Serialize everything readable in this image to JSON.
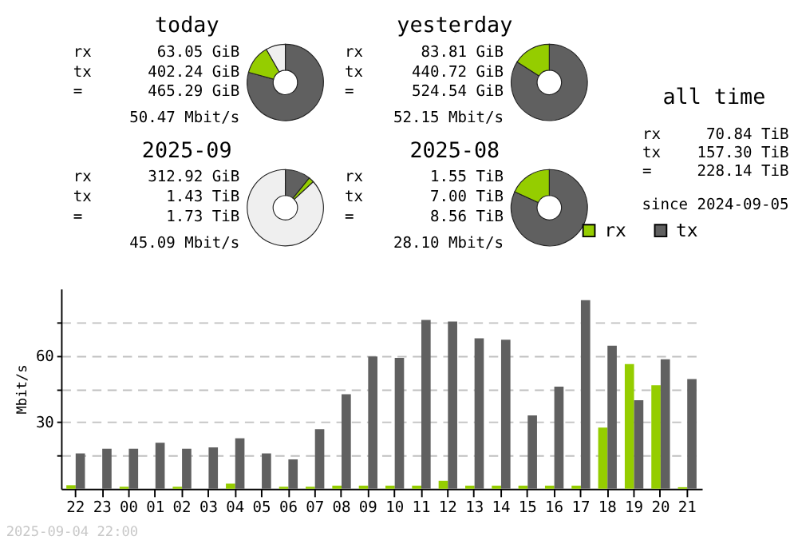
{
  "chart_data": [
    {
      "type": "donut",
      "title": "today",
      "categories": [
        null,
        null,
        null
      ],
      "values": [
        79.3,
        12.4,
        8.3
      ],
      "colors": [
        "#606060",
        "#95cd00",
        "#efefef"
      ],
      "annotations": [
        "rx",
        "63.05 GiB",
        "tx",
        "402.24 GiB",
        "=",
        "465.29 GiB",
        "50.47 Mbit/s"
      ]
    },
    {
      "type": "donut",
      "title": "yesterday",
      "categories": [
        null,
        null
      ],
      "values": [
        84,
        16
      ],
      "colors": [
        "#606060",
        "#95cd00"
      ],
      "annotations": [
        "rx",
        "83.81 GiB",
        "tx",
        "440.72 GiB",
        "=",
        "524.54 GiB",
        "52.15 Mbit/s"
      ]
    },
    {
      "type": "other",
      "title": "all time",
      "annotations": [
        "rx",
        "70.84 TiB",
        "tx",
        "157.30 TiB",
        "=",
        "228.14 TiB",
        "since 2024-09-05"
      ]
    },
    {
      "type": "donut",
      "title": "2025-09",
      "categories": [
        null,
        null,
        null
      ],
      "values": [
        10.8,
        2.3,
        86.9
      ],
      "colors": [
        "#606060",
        "#95cd00",
        "#efefef"
      ],
      "annotations": [
        "rx",
        "312.92 GiB",
        "tx",
        "1.43 TiB",
        "=",
        "1.73 TiB",
        "45.09 Mbit/s"
      ]
    },
    {
      "type": "donut",
      "title": "2025-08",
      "categories": [
        null,
        null
      ],
      "values": [
        81.9,
        18.1
      ],
      "colors": [
        "#606060",
        "#95cd00"
      ],
      "annotations": [
        "rx",
        "1.55 TiB",
        "tx",
        "7.00 TiB",
        "=",
        "8.56 TiB",
        "28.10 Mbit/s"
      ]
    },
    {
      "type": "bar",
      "ylabel": "Mbit/s",
      "categories": [
        "22",
        "23",
        "00",
        "01",
        "02",
        "03",
        "04",
        "05",
        "06",
        "07",
        "08",
        "09",
        "10",
        "11",
        "12",
        "13",
        "14",
        "15",
        "16",
        "17",
        "18",
        "19",
        "20",
        "21"
      ],
      "series": [
        {
          "name": "rx",
          "color": "#95cd00",
          "values": [
            1.6,
            0,
            0.9,
            0,
            0.9,
            0,
            2.3,
            0,
            0.9,
            0.9,
            1.4,
            1.4,
            1.4,
            1.4,
            3.6,
            1.4,
            1.4,
            1.4,
            1.4,
            1.4,
            27.5,
            56.1,
            46.6,
            0.7
          ]
        },
        {
          "name": "tx",
          "color": "#606060",
          "values": [
            15.9,
            18,
            18,
            20.7,
            18,
            18.6,
            22.7,
            15.9,
            13.2,
            26.8,
            42.5,
            59.5,
            58.9,
            75.9,
            75.2,
            67.7,
            67,
            33,
            45.9,
            84.8,
            64.3,
            39.8,
            58.2,
            49.3
          ]
        }
      ],
      "ylim": [
        0,
        90
      ],
      "yticks": [
        {
          "value": 15,
          "label": null
        },
        30,
        {
          "value": 45,
          "label": null
        },
        60,
        {
          "value": 75,
          "label": null
        }
      ],
      "grid": "y",
      "legend": "top right",
      "annotations": [
        "2025-09-04 22:00"
      ]
    }
  ]
}
